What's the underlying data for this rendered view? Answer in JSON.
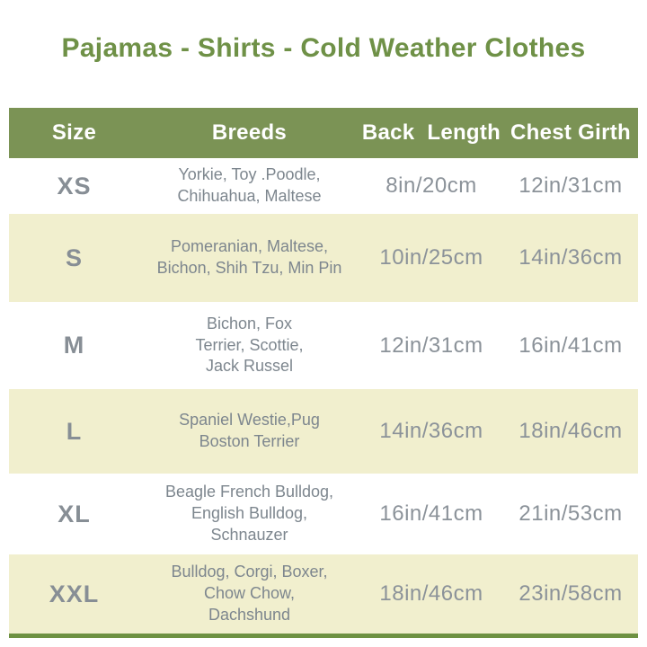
{
  "title": "Pajamas - Shirts - Cold Weather Clothes",
  "table": {
    "columns": {
      "size": "Size",
      "breeds": "Breeds",
      "back_length": "Back  Length",
      "chest_girth": "Chest Girth"
    },
    "rows": [
      {
        "size": "XS",
        "breeds": "Yorkie, Toy .Poodle,\nChihuahua, Maltese",
        "back_length": "8in/20cm",
        "chest_girth": "12in/31cm"
      },
      {
        "size": "S",
        "breeds": "Pomeranian, Maltese,\nBichon, Shih Tzu, Min Pin",
        "back_length": "10in/25cm",
        "chest_girth": "14in/36cm"
      },
      {
        "size": "M",
        "breeds": "Bichon, Fox\nTerrier, Scottie,\nJack Russel",
        "back_length": "12in/31cm",
        "chest_girth": "16in/41cm"
      },
      {
        "size": "L",
        "breeds": "Spaniel Westie,Pug\nBoston Terrier",
        "back_length": "14in/36cm",
        "chest_girth": "18in/46cm"
      },
      {
        "size": "XL",
        "breeds": "Beagle French Bulldog,\nEnglish Bulldog,\nSchnauzer",
        "back_length": "16in/41cm",
        "chest_girth": "21in/53cm"
      },
      {
        "size": "XXL",
        "breeds": "Bulldog, Corgi, Boxer,\nChow Chow,\nDachshund",
        "back_length": "18in/46cm",
        "chest_girth": "23in/58cm"
      }
    ]
  },
  "colors": {
    "title_green": "#6f9147",
    "header_green": "#7b9355",
    "row_cream": "#f1efce",
    "row_white": "#ffffff",
    "size_text_gray": "#878e95",
    "breeds_text_gray": "#7d868e",
    "measure_text_gray": "#8b9299",
    "bottom_bar_green": "#6e9142"
  }
}
